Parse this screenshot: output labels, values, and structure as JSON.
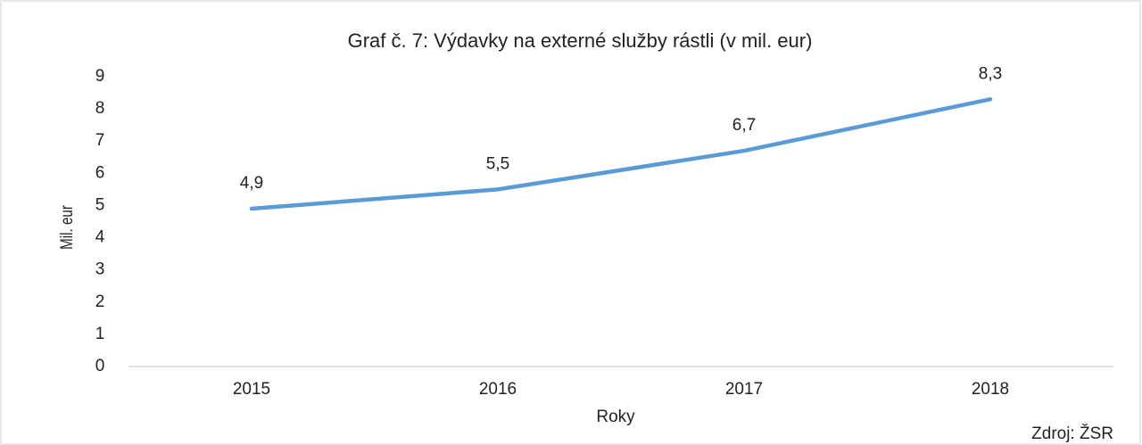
{
  "chart_data": {
    "type": "line",
    "title": "Graf č. 7: Výdavky na externé služby rástli (v mil. eur)",
    "y_label": "Mil. eur",
    "x_label": "Roky",
    "source": "Zdroj: ŽSR",
    "categories": [
      "2015",
      "2016",
      "2017",
      "2018"
    ],
    "series": [
      {
        "name": "Výdavky",
        "color": "#5b9bd5",
        "values": [
          4.9,
          5.5,
          6.7,
          8.3
        ],
        "value_labels": [
          "4,9",
          "5,5",
          "6,7",
          "8,3"
        ]
      }
    ],
    "ylim": [
      0,
      9
    ],
    "yticks": [
      0,
      1,
      2,
      3,
      4,
      5,
      6,
      7,
      8,
      9
    ],
    "grid": false,
    "legend": false
  }
}
